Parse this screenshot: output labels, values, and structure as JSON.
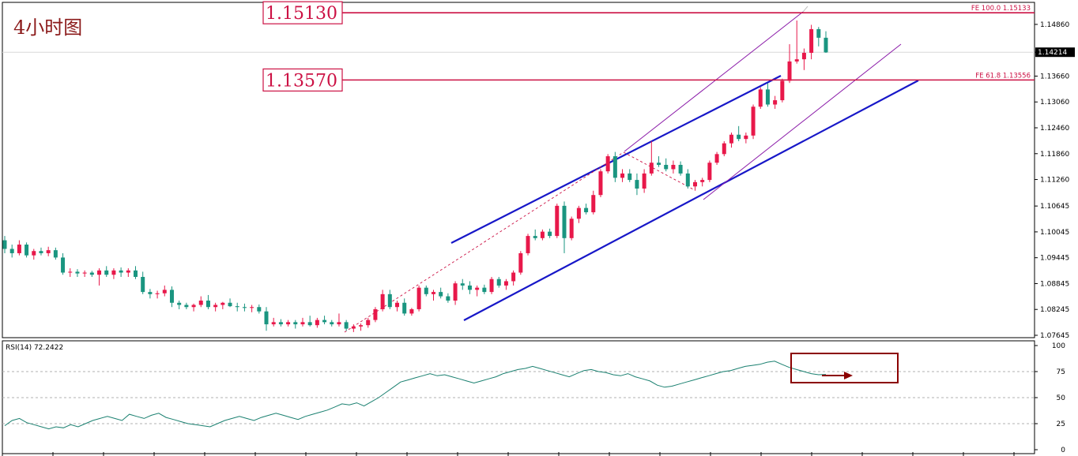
{
  "title": "4小时图",
  "colors": {
    "bull": "#e8184a",
    "bear": "#1a9580",
    "channel": "#1717c8",
    "pitchfork": "#8a1aa8",
    "level": "#cc1144",
    "rsi_line": "#1a8070",
    "box": "#8b0000"
  },
  "levels": [
    {
      "label": "1.15130",
      "price": 1.1513,
      "fe_label": "FE 100.0  1.15133"
    },
    {
      "label": "1.13570",
      "price": 1.1357,
      "fe_label": "FE 61.8  1.13556"
    }
  ],
  "current_price": {
    "label": "1.14214",
    "value": 1.14214
  },
  "chart_data": [
    {
      "type": "candlestick",
      "title": "4小时图",
      "ylim": [
        1.07645,
        1.15133
      ],
      "yticks": [
        "1.14860",
        "1.14214",
        "1.13660",
        "1.13060",
        "1.12460",
        "1.11860",
        "1.11260",
        "1.10645",
        "1.10045",
        "1.09445",
        "1.08845",
        "1.08245",
        "1.07645"
      ],
      "candles": [
        [
          1.0985,
          1.0995,
          1.0955,
          1.0965
        ],
        [
          1.0965,
          1.0975,
          1.0945,
          1.0955
        ],
        [
          1.0955,
          1.0985,
          1.095,
          1.0975
        ],
        [
          1.0975,
          1.098,
          1.0945,
          1.095
        ],
        [
          1.095,
          1.0965,
          1.094,
          1.096
        ],
        [
          1.096,
          1.0968,
          1.095,
          1.0955
        ],
        [
          1.0955,
          1.097,
          1.0948,
          1.0962
        ],
        [
          1.0962,
          1.0968,
          1.094,
          1.0945
        ],
        [
          1.0945,
          1.0955,
          1.0905,
          1.091
        ],
        [
          1.091,
          1.092,
          1.09,
          1.0912
        ],
        [
          1.0912,
          1.0918,
          1.09,
          1.0908
        ],
        [
          1.0908,
          1.0915,
          1.09,
          1.091
        ],
        [
          1.091,
          1.0914,
          1.09,
          1.0905
        ],
        [
          1.0905,
          1.092,
          1.088,
          1.0915
        ],
        [
          1.0915,
          1.0925,
          1.09,
          1.0905
        ],
        [
          1.0905,
          1.092,
          1.0895,
          1.0915
        ],
        [
          1.0915,
          1.0922,
          1.09,
          1.091
        ],
        [
          1.091,
          1.092,
          1.09,
          1.0915
        ],
        [
          1.0915,
          1.0925,
          1.0895,
          1.09
        ],
        [
          1.09,
          1.0912,
          1.086,
          1.0865
        ],
        [
          1.0865,
          1.0872,
          1.085,
          1.086
        ],
        [
          1.086,
          1.0868,
          1.085,
          1.0862
        ],
        [
          1.0862,
          1.088,
          1.0855,
          1.087
        ],
        [
          1.087,
          1.0878,
          1.083,
          1.084
        ],
        [
          1.084,
          1.0845,
          1.0825,
          1.0835
        ],
        [
          1.0835,
          1.084,
          1.0825,
          1.083
        ],
        [
          1.083,
          1.0838,
          1.082,
          1.0835
        ],
        [
          1.0835,
          1.0855,
          1.083,
          1.0845
        ],
        [
          1.0845,
          1.0858,
          1.0825,
          1.083
        ],
        [
          1.083,
          1.084,
          1.082,
          1.0835
        ],
        [
          1.0835,
          1.0842,
          1.0825,
          1.084
        ],
        [
          1.084,
          1.085,
          1.083,
          1.0832
        ],
        [
          1.0832,
          1.084,
          1.082,
          1.083
        ],
        [
          1.083,
          1.0838,
          1.082,
          1.0828
        ],
        [
          1.0828,
          1.0835,
          1.0818,
          1.083
        ],
        [
          1.083,
          1.0836,
          1.0815,
          1.082
        ],
        [
          1.082,
          1.083,
          1.0775,
          1.079
        ],
        [
          1.079,
          1.0805,
          1.0785,
          1.0795
        ],
        [
          1.0795,
          1.0802,
          1.0785,
          1.079
        ],
        [
          1.079,
          1.08,
          1.0785,
          1.0795
        ],
        [
          1.0795,
          1.08,
          1.078,
          1.079
        ],
        [
          1.079,
          1.0805,
          1.0785,
          1.0795
        ],
        [
          1.0795,
          1.081,
          1.0785,
          1.0788
        ],
        [
          1.0788,
          1.0805,
          1.0782,
          1.08
        ],
        [
          1.08,
          1.081,
          1.079,
          1.0795
        ],
        [
          1.0795,
          1.08,
          1.0785,
          1.079
        ],
        [
          1.079,
          1.0815,
          1.0785,
          1.0795
        ],
        [
          1.0795,
          1.08,
          1.0775,
          1.078
        ],
        [
          1.078,
          1.079,
          1.0772,
          1.0785
        ],
        [
          1.0785,
          1.0792,
          1.0775,
          1.0788
        ],
        [
          1.0788,
          1.0805,
          1.0782,
          1.08
        ],
        [
          1.08,
          1.083,
          1.0795,
          1.0825
        ],
        [
          1.0825,
          1.087,
          1.082,
          1.086
        ],
        [
          1.086,
          1.087,
          1.0825,
          1.083
        ],
        [
          1.083,
          1.0845,
          1.082,
          1.084
        ],
        [
          1.084,
          1.085,
          1.081,
          1.0815
        ],
        [
          1.0815,
          1.0828,
          1.081,
          1.0825
        ],
        [
          1.0825,
          1.088,
          1.082,
          1.0875
        ],
        [
          1.0875,
          1.088,
          1.0855,
          1.086
        ],
        [
          1.086,
          1.087,
          1.0845,
          1.0865
        ],
        [
          1.0865,
          1.0875,
          1.085,
          1.0855
        ],
        [
          1.0855,
          1.0862,
          1.084,
          1.0845
        ],
        [
          1.0845,
          1.089,
          1.0835,
          1.0885
        ],
        [
          1.0885,
          1.0895,
          1.087,
          1.088
        ],
        [
          1.088,
          1.089,
          1.086,
          1.087
        ],
        [
          1.087,
          1.088,
          1.0855,
          1.0875
        ],
        [
          1.0875,
          1.0882,
          1.086,
          1.0865
        ],
        [
          1.0865,
          1.09,
          1.086,
          1.0895
        ],
        [
          1.0895,
          1.09,
          1.0875,
          1.088
        ],
        [
          1.088,
          1.0895,
          1.087,
          1.089
        ],
        [
          1.089,
          1.0915,
          1.088,
          1.091
        ],
        [
          1.091,
          1.096,
          1.0905,
          1.0955
        ],
        [
          1.0955,
          1.1,
          1.095,
          1.0995
        ],
        [
          1.0995,
          1.101,
          1.0985,
          1.099
        ],
        [
          1.099,
          1.101,
          1.0985,
          1.1005
        ],
        [
          1.1005,
          1.1012,
          1.099,
          1.0995
        ],
        [
          1.0995,
          1.107,
          1.099,
          1.1065
        ],
        [
          1.1065,
          1.1075,
          1.0955,
          1.099
        ],
        [
          1.099,
          1.104,
          1.0985,
          1.1035
        ],
        [
          1.1035,
          1.1065,
          1.1025,
          1.106
        ],
        [
          1.106,
          1.107,
          1.1045,
          1.105
        ],
        [
          1.105,
          1.11,
          1.1045,
          1.109
        ],
        [
          1.109,
          1.115,
          1.1085,
          1.1145
        ],
        [
          1.1145,
          1.1185,
          1.114,
          1.118
        ],
        [
          1.118,
          1.119,
          1.112,
          1.113
        ],
        [
          1.113,
          1.115,
          1.112,
          1.114
        ],
        [
          1.114,
          1.115,
          1.112,
          1.1125
        ],
        [
          1.1125,
          1.114,
          1.109,
          1.1105
        ],
        [
          1.1105,
          1.115,
          1.1095,
          1.114
        ],
        [
          1.114,
          1.1215,
          1.1135,
          1.1165
        ],
        [
          1.1165,
          1.118,
          1.1155,
          1.116
        ],
        [
          1.116,
          1.1175,
          1.1145,
          1.115
        ],
        [
          1.115,
          1.117,
          1.114,
          1.116
        ],
        [
          1.116,
          1.1168,
          1.1135,
          1.114
        ],
        [
          1.114,
          1.115,
          1.1105,
          1.111
        ],
        [
          1.111,
          1.1125,
          1.11,
          1.112
        ],
        [
          1.112,
          1.113,
          1.111,
          1.1125
        ],
        [
          1.1125,
          1.117,
          1.112,
          1.1165
        ],
        [
          1.1165,
          1.119,
          1.116,
          1.1185
        ],
        [
          1.1185,
          1.1215,
          1.118,
          1.121
        ],
        [
          1.121,
          1.1235,
          1.12,
          1.123
        ],
        [
          1.123,
          1.125,
          1.1215,
          1.122
        ],
        [
          1.122,
          1.1235,
          1.121,
          1.1228
        ],
        [
          1.1228,
          1.13,
          1.122,
          1.1295
        ],
        [
          1.1295,
          1.134,
          1.129,
          1.1335
        ],
        [
          1.1335,
          1.135,
          1.1295,
          1.13
        ],
        [
          1.13,
          1.132,
          1.129,
          1.131
        ],
        [
          1.131,
          1.136,
          1.1305,
          1.1355
        ],
        [
          1.1355,
          1.144,
          1.135,
          1.14
        ],
        [
          1.14,
          1.1495,
          1.1395,
          1.1405
        ],
        [
          1.1405,
          1.143,
          1.138,
          1.142
        ],
        [
          1.142,
          1.1485,
          1.1405,
          1.1475
        ],
        [
          1.1475,
          1.148,
          1.1435,
          1.1455
        ],
        [
          1.1455,
          1.147,
          1.142,
          1.1421
        ]
      ]
    },
    {
      "type": "line",
      "title": "RSI(14) 72.2422",
      "ylim": [
        0,
        100
      ],
      "yticks": [
        "100",
        "75",
        "50",
        "25",
        "0"
      ],
      "values": [
        23,
        28,
        30,
        26,
        24,
        22,
        20,
        22,
        21,
        24,
        22,
        25,
        28,
        30,
        32,
        30,
        28,
        34,
        32,
        30,
        33,
        35,
        31,
        29,
        27,
        25,
        24,
        23,
        22,
        25,
        28,
        30,
        32,
        30,
        28,
        31,
        33,
        35,
        33,
        31,
        29,
        32,
        34,
        36,
        38,
        41,
        44,
        43,
        45,
        42,
        46,
        50,
        55,
        60,
        65,
        67,
        69,
        71,
        73,
        71,
        72,
        70,
        68,
        66,
        64,
        66,
        68,
        70,
        73,
        75,
        77,
        78,
        80,
        78,
        76,
        74,
        72,
        70,
        73,
        76,
        77,
        75,
        74,
        72,
        71,
        73,
        70,
        68,
        66,
        62,
        60,
        61,
        63,
        65,
        67,
        69,
        71,
        73,
        75,
        76,
        78,
        80,
        81,
        82,
        84,
        85,
        82,
        79,
        77,
        75,
        73,
        72,
        72.24
      ]
    }
  ]
}
